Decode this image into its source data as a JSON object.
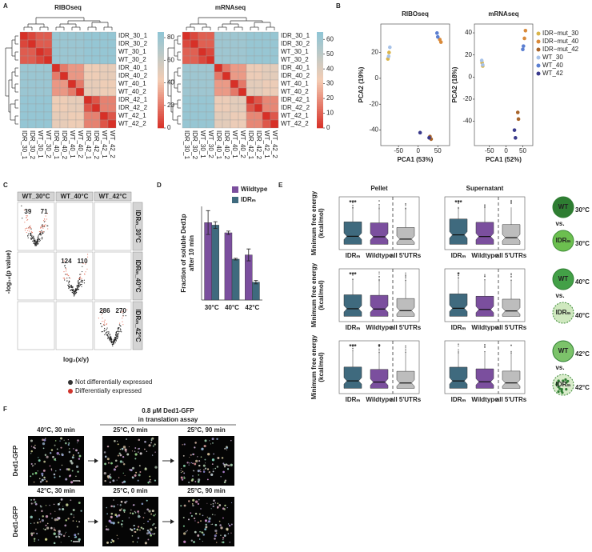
{
  "panel_labels": [
    "A",
    "B",
    "C",
    "D",
    "E",
    "F"
  ],
  "chart_data": [
    {
      "type": "heatmap",
      "title": "RIBOseq",
      "rows": [
        "IDR_30_1",
        "IDR_30_2",
        "WT_30_1",
        "WT_30_2",
        "IDR_40_1",
        "IDR_40_2",
        "WT_40_1",
        "WT_40_2",
        "IDR_42_1",
        "IDR_42_2",
        "WT_42_1",
        "WT_42_2"
      ],
      "columns": [
        "IDR_30_1",
        "IDR_30_2",
        "WT_30_1",
        "WT_30_2",
        "IDR_40_1",
        "IDR_40_2",
        "WT_40_1",
        "WT_40_2",
        "IDR_42_1",
        "IDR_42_2",
        "WT_42_1",
        "WT_42_2"
      ],
      "values": [
        [
          0,
          6,
          12,
          12,
          80,
          80,
          80,
          80,
          82,
          82,
          82,
          82
        ],
        [
          6,
          0,
          12,
          12,
          80,
          80,
          80,
          80,
          82,
          82,
          82,
          82
        ],
        [
          12,
          12,
          0,
          6,
          80,
          80,
          80,
          80,
          82,
          82,
          82,
          82
        ],
        [
          12,
          12,
          6,
          0,
          80,
          80,
          80,
          80,
          82,
          82,
          82,
          82
        ],
        [
          80,
          80,
          80,
          80,
          0,
          20,
          28,
          28,
          45,
          45,
          48,
          48
        ],
        [
          80,
          80,
          80,
          80,
          20,
          0,
          28,
          28,
          45,
          45,
          48,
          48
        ],
        [
          80,
          80,
          80,
          80,
          28,
          28,
          0,
          20,
          48,
          48,
          45,
          45
        ],
        [
          80,
          80,
          80,
          80,
          28,
          28,
          20,
          0,
          48,
          48,
          45,
          45
        ],
        [
          82,
          82,
          82,
          82,
          45,
          45,
          48,
          48,
          0,
          10,
          22,
          22
        ],
        [
          82,
          82,
          82,
          82,
          45,
          45,
          48,
          48,
          10,
          0,
          22,
          22
        ],
        [
          82,
          82,
          82,
          82,
          48,
          48,
          45,
          45,
          22,
          22,
          0,
          10
        ],
        [
          82,
          82,
          82,
          82,
          48,
          48,
          45,
          45,
          22,
          22,
          10,
          0
        ]
      ],
      "colorbar_lim": [
        0,
        85
      ],
      "colorbar_ticks": [
        0,
        20,
        40,
        60,
        80
      ],
      "colorscale": [
        "#d73027",
        "#f4cdb4",
        "#8ec5d6"
      ]
    },
    {
      "type": "heatmap",
      "title": "mRNAseq",
      "rows": [
        "IDR_30_1",
        "IDR_30_2",
        "WT_30_1",
        "WT_30_2",
        "IDR_40_1",
        "IDR_40_2",
        "WT_40_1",
        "WT_40_2",
        "IDR_42_1",
        "IDR_42_2",
        "WT_42_1",
        "WT_42_2"
      ],
      "columns": [
        "IDR_30_1",
        "IDR_30_2",
        "WT_30_1",
        "WT_30_2",
        "IDR_40_1",
        "IDR_40_2",
        "WT_40_1",
        "WT_40_2",
        "IDR_42_1",
        "IDR_42_2",
        "WT_42_1",
        "WT_42_2"
      ],
      "values": [
        [
          0,
          5,
          10,
          10,
          60,
          60,
          60,
          60,
          62,
          62,
          62,
          62
        ],
        [
          5,
          0,
          10,
          10,
          60,
          60,
          60,
          60,
          62,
          62,
          62,
          62
        ],
        [
          10,
          10,
          0,
          5,
          60,
          60,
          60,
          60,
          62,
          62,
          62,
          62
        ],
        [
          10,
          10,
          5,
          0,
          60,
          60,
          60,
          60,
          62,
          62,
          62,
          62
        ],
        [
          60,
          60,
          60,
          60,
          0,
          15,
          22,
          22,
          35,
          35,
          38,
          38
        ],
        [
          60,
          60,
          60,
          60,
          15,
          0,
          22,
          22,
          35,
          35,
          38,
          38
        ],
        [
          60,
          60,
          60,
          60,
          22,
          22,
          0,
          15,
          38,
          38,
          35,
          35
        ],
        [
          60,
          60,
          60,
          60,
          22,
          22,
          15,
          0,
          38,
          38,
          35,
          35
        ],
        [
          62,
          62,
          62,
          62,
          35,
          35,
          38,
          38,
          0,
          8,
          18,
          18
        ],
        [
          62,
          62,
          62,
          62,
          35,
          35,
          38,
          38,
          8,
          0,
          18,
          18
        ],
        [
          62,
          62,
          62,
          62,
          38,
          38,
          35,
          35,
          18,
          18,
          0,
          8
        ],
        [
          62,
          62,
          62,
          62,
          38,
          38,
          35,
          35,
          18,
          18,
          8,
          0
        ]
      ],
      "colorbar_lim": [
        0,
        65
      ],
      "colorbar_ticks": [
        0,
        10,
        20,
        30,
        40,
        50,
        60
      ],
      "colorscale": [
        "#d73027",
        "#f4cdb4",
        "#8ec5d6"
      ]
    },
    {
      "type": "scatter",
      "title": "RIBOseq",
      "x_label": "PCA1 (53%)",
      "y_label": "PCA2 (19%)",
      "xlim": [
        -95,
        80
      ],
      "xticks": [
        -50,
        0,
        50
      ],
      "ylim": [
        -52,
        42
      ],
      "yticks": [
        -40,
        -20,
        0,
        20
      ],
      "series": [
        {
          "color": "#d9b44a",
          "x": [
            -74,
            -77
          ],
          "values": [
            20,
            15
          ]
        },
        {
          "color": "#d98a3a",
          "x": [
            55,
            58
          ],
          "values": [
            30,
            28
          ]
        },
        {
          "color": "#a8642a",
          "x": [
            30,
            33
          ],
          "values": [
            -45,
            -47
          ]
        },
        {
          "color": "#a7c2e8",
          "x": [
            -72,
            -75
          ],
          "values": [
            24,
            17
          ]
        },
        {
          "color": "#5b7fd1",
          "x": [
            48,
            50
          ],
          "values": [
            35,
            32
          ]
        },
        {
          "color": "#3a3a8c",
          "x": [
            5,
            28
          ],
          "values": [
            -42,
            -46
          ]
        }
      ]
    },
    {
      "type": "scatter",
      "title": "mRNAseq",
      "x_label": "PCA1 (52%)",
      "y_label": "PCA2 (18%)",
      "xlim": [
        -95,
        80
      ],
      "xticks": [
        -50,
        0,
        50
      ],
      "ylim": [
        -62,
        48
      ],
      "yticks": [
        -40,
        -20,
        0,
        20,
        40
      ],
      "legend": "right",
      "series": [
        {
          "name": "IDR−mut_30",
          "color": "#d9b44a",
          "x": [
            -72,
            -70
          ],
          "values": [
            13,
            10
          ]
        },
        {
          "name": "IDR−mut_40",
          "color": "#d98a3a",
          "x": [
            55,
            58
          ],
          "values": [
            35,
            42
          ]
        },
        {
          "name": "IDR−mut_42",
          "color": "#a8642a",
          "x": [
            35,
            37
          ],
          "values": [
            -32,
            -38
          ]
        },
        {
          "name": "WT_30",
          "color": "#a7c2e8",
          "x": [
            -73,
            -70
          ],
          "values": [
            15,
            11
          ]
        },
        {
          "name": "WT_40",
          "color": "#5b7fd1",
          "x": [
            50,
            52
          ],
          "values": [
            25,
            28
          ]
        },
        {
          "name": "WT_42",
          "color": "#3a3a8c",
          "x": [
            25,
            28
          ],
          "values": [
            -48,
            -55
          ]
        }
      ]
    },
    {
      "type": "bar",
      "y_label": [
        "Fraction of soluble Ded1p",
        "after 10 min"
      ],
      "categories": [
        "30°C",
        "40°C",
        "42°C"
      ],
      "ylim": [
        0,
        1.1
      ],
      "legend": "top-right",
      "series": [
        {
          "name": "Wildtype",
          "color": "#7b4f9e",
          "values": [
            0.91,
            0.79,
            0.53
          ],
          "errors": [
            0.14,
            0.02,
            0.07
          ]
        },
        {
          "name": "IDRₘ",
          "color": "#3f6a7e",
          "values": [
            0.88,
            0.48,
            0.21
          ],
          "errors": [
            0.04,
            0.01,
            0.02
          ]
        }
      ]
    }
  ],
  "volcano": {
    "columns": [
      "WT_30°C",
      "WT_40°C",
      "WT_42°C"
    ],
    "rows": [
      "IDRₘ_30°C",
      "IDRₘ_40°C",
      "IDRₘ_42°C"
    ],
    "diagonal_counts": [
      [
        39,
        71
      ],
      [
        124,
        110
      ],
      [
        286,
        270
      ]
    ],
    "y_label": "-log₁₀(p value)",
    "x_label": "log₂(x/y)",
    "legend": [
      {
        "name": "Not differentially expressed",
        "color": "#333333"
      },
      {
        "name": "Differentially expressed",
        "color": "#d0342c"
      }
    ]
  },
  "boxplots": {
    "columns": [
      "Pellet",
      "Supernatant"
    ],
    "y_label": [
      "Minimum free energy",
      "(kcal/mol)"
    ],
    "groups": [
      "IDRₘ",
      "Wildtype",
      "all 5'UTRs"
    ],
    "group_colors": [
      "#3f6a7e",
      "#7b4f9e",
      "#bdbdbd"
    ],
    "significance": [
      [
        [
          "***",
          null
        ],
        [
          "***",
          null
        ]
      ],
      [
        [
          "***",
          null
        ],
        [
          "*",
          null
        ]
      ],
      [
        [
          "***",
          "*"
        ],
        [
          null,
          null
        ]
      ]
    ],
    "conditions": {
      "top": "WT",
      "bottom": "IDRₘ",
      "vs": "vs.",
      "temperatures": [
        "30°C",
        "40°C",
        "42°C"
      ]
    }
  },
  "micrographs": {
    "title": [
      "0.8 µM Ded1-GFP",
      "in translation assay"
    ],
    "row_label": "Ded1-GFP",
    "rows": [
      [
        "40°C, 30 min",
        "25°C, 0 min",
        "25°C, 90 min"
      ],
      [
        "42°C, 30 min",
        "25°C, 0 min",
        "25°C, 90 min"
      ]
    ]
  }
}
